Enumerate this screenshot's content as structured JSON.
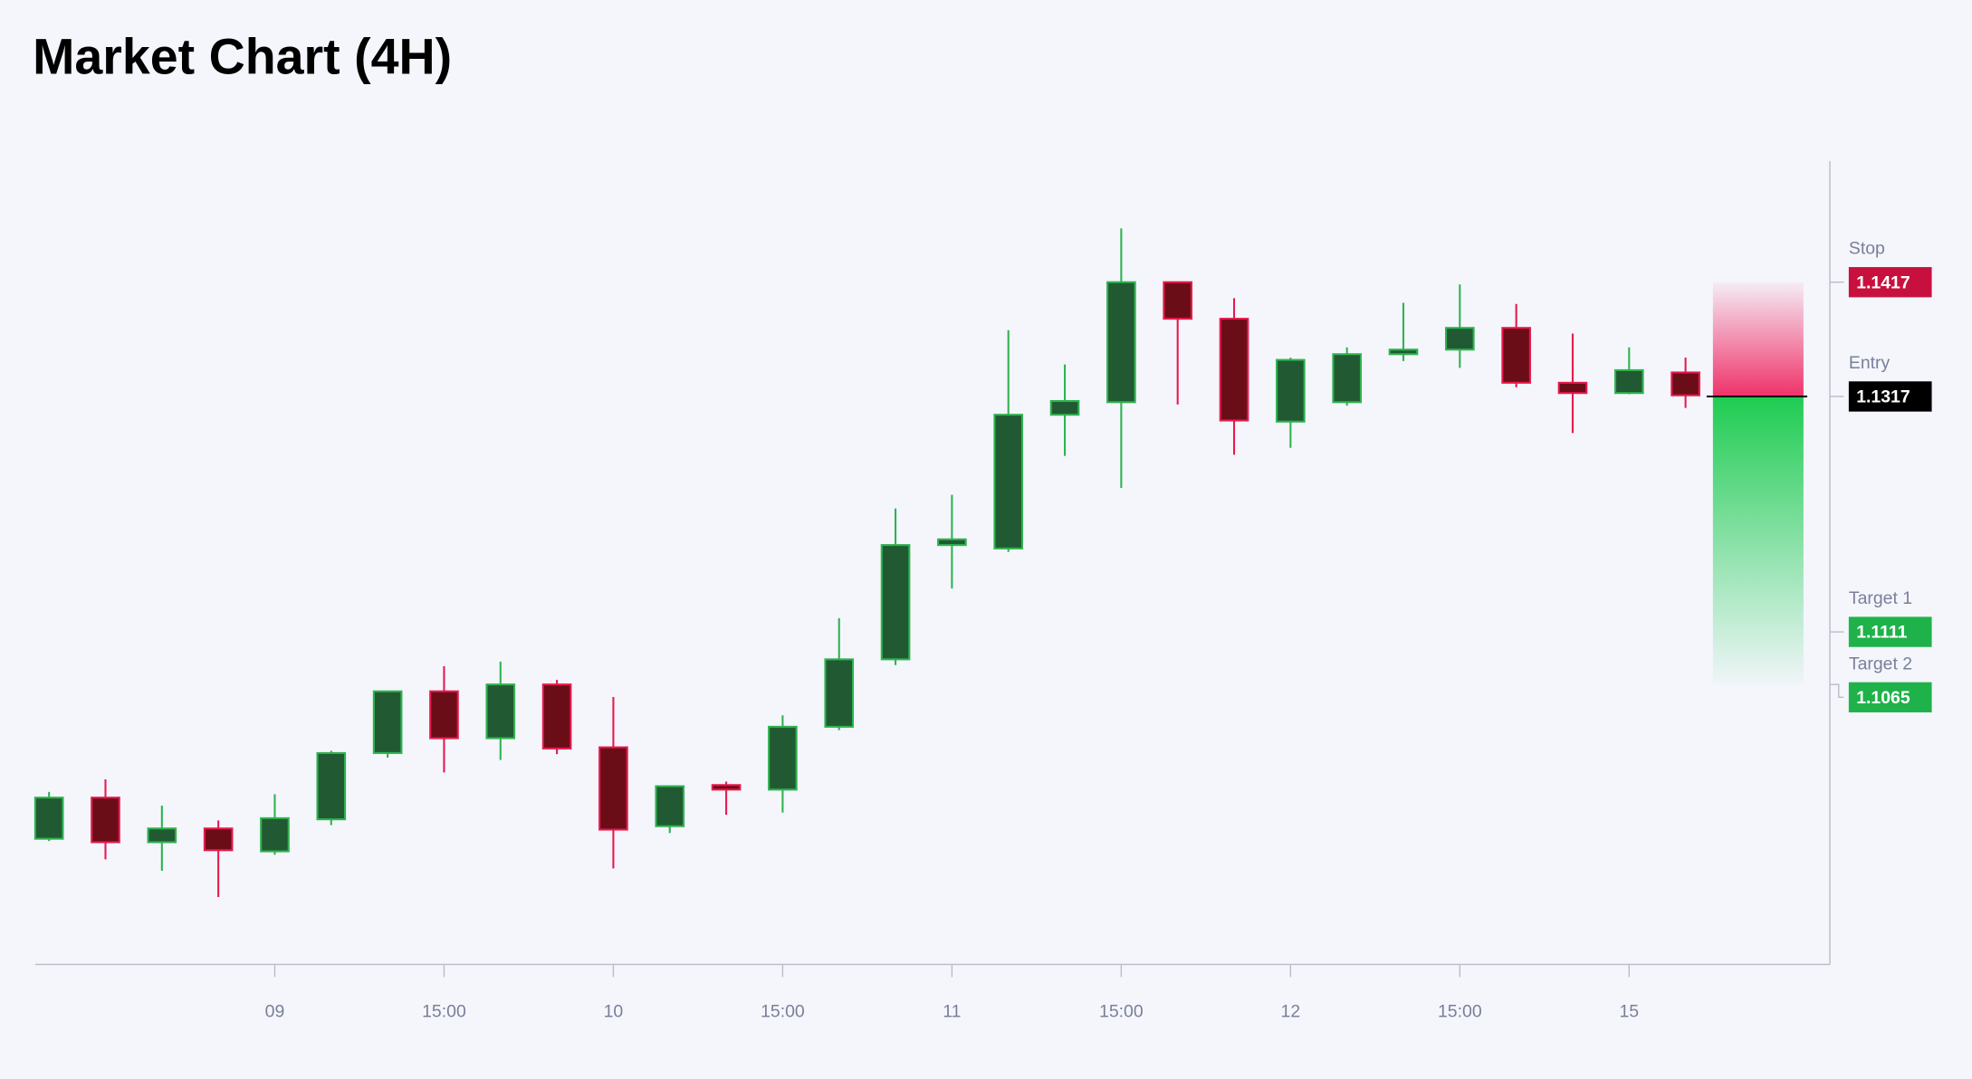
{
  "chart_data": {
    "type": "candlestick",
    "title": "Market Chart (4H)",
    "categories": [
      null,
      null,
      null,
      null,
      "09",
      null,
      null,
      "15:00",
      null,
      null,
      "10",
      null,
      null,
      "15:00",
      null,
      null,
      "11",
      null,
      null,
      "15:00",
      null,
      null,
      "12",
      null,
      null,
      "15:00",
      null,
      null,
      "15",
      null
    ],
    "open": [
      1.093,
      1.0966,
      1.0927,
      1.0939,
      1.0919,
      1.0947,
      1.1005,
      1.1059,
      1.1018,
      1.1065,
      1.101,
      1.0941,
      1.0977,
      1.0973,
      1.1028,
      1.1087,
      1.1187,
      1.1184,
      1.1301,
      1.1312,
      1.1417,
      1.1385,
      1.1295,
      1.1312,
      1.1354,
      1.1358,
      1.1377,
      1.1329,
      1.132,
      1.1338
    ],
    "high": [
      1.0971,
      1.0982,
      1.0959,
      1.0946,
      1.0969,
      1.1007,
      1.1059,
      1.1081,
      1.1085,
      1.1069,
      1.1054,
      1.0976,
      1.098,
      1.1038,
      1.1123,
      1.1219,
      1.1231,
      1.1375,
      1.1345,
      1.1464,
      1.1417,
      1.1403,
      1.1351,
      1.136,
      1.1399,
      1.1415,
      1.1398,
      1.1372,
      1.136,
      1.1351
    ],
    "low": [
      1.0928,
      1.0912,
      1.0902,
      1.0879,
      1.0916,
      1.0942,
      1.1001,
      1.0988,
      1.0999,
      1.1004,
      1.0904,
      1.0935,
      1.0951,
      1.0953,
      1.1025,
      1.1082,
      1.1149,
      1.1181,
      1.1265,
      1.1237,
      1.131,
      1.1266,
      1.1272,
      1.1309,
      1.1348,
      1.1342,
      1.1325,
      1.1285,
      1.1319,
      1.1307
    ],
    "close": [
      1.0966,
      1.0927,
      1.0939,
      1.092,
      1.0948,
      1.1005,
      1.1059,
      1.1018,
      1.1065,
      1.1009,
      1.0938,
      1.0976,
      1.0973,
      1.1028,
      1.1087,
      1.1187,
      1.1192,
      1.1301,
      1.1313,
      1.1417,
      1.1385,
      1.1296,
      1.1349,
      1.1354,
      1.1358,
      1.1377,
      1.1329,
      1.132,
      1.134,
      1.1318
    ],
    "up_color": "#215a32",
    "up_edge": "#2fb34f",
    "down_color": "#6b0d17",
    "down_edge": "#e8194d",
    "ylim": [
      1.082,
      1.1523
    ],
    "levels": [
      {
        "name": "Stop",
        "value": 1.1417,
        "color": "#c8103f"
      },
      {
        "name": "Entry",
        "value": 1.1317,
        "color": "#000000"
      },
      {
        "name": "Target 1",
        "value": 1.1111,
        "color": "#1fb24a"
      },
      {
        "name": "Target 2",
        "value": 1.1065,
        "color": "#1fb24a"
      }
    ]
  }
}
